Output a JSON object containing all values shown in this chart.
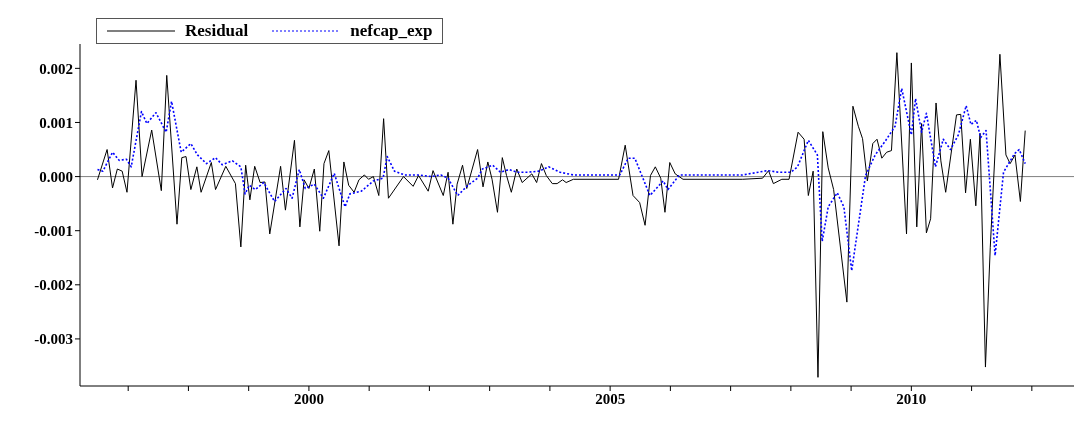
{
  "chart_data": {
    "type": "line",
    "xlim": [
      1996.2,
      2012.7
    ],
    "xticks": [
      {
        "value": 1997,
        "label": null
      },
      {
        "value": 1998,
        "label": null
      },
      {
        "value": 1999,
        "label": null
      },
      2000,
      {
        "value": 2001,
        "label": null
      },
      {
        "value": 2002,
        "label": null
      },
      {
        "value": 2003,
        "label": null
      },
      {
        "value": 2004,
        "label": null
      },
      2005,
      {
        "value": 2006,
        "label": null
      },
      {
        "value": 2007,
        "label": null
      },
      {
        "value": 2008,
        "label": null
      },
      {
        "value": 2009,
        "label": null
      },
      2010,
      {
        "value": 2011,
        "label": null
      },
      {
        "value": 2012,
        "label": null
      }
    ],
    "ylim": [
      -0.00387,
      0.00245
    ],
    "yticks": [
      {
        "value": -0.003,
        "label": "-0.003"
      },
      {
        "value": -0.002,
        "label": "-0.002"
      },
      {
        "value": -0.001,
        "label": "-0.001"
      },
      {
        "value": 0,
        "label": "0.000"
      },
      {
        "value": 0.001,
        "label": "0.001"
      },
      {
        "value": 0.002,
        "label": "0.002"
      }
    ],
    "grid": false,
    "legend": "top left",
    "marker": "none",
    "ref_lines": [
      {
        "axis": "y",
        "value": 0,
        "label": null,
        "color": "#808080"
      }
    ],
    "series": [
      {
        "name": "Residual",
        "color": "#000000",
        "line_style": "solid",
        "x": [
          1996.49,
          1996.65,
          1996.74,
          1996.82,
          1996.9,
          1996.98,
          1997.13,
          1997.23,
          1997.39,
          1997.55,
          1997.64,
          1997.81,
          1997.89,
          1997.96,
          1998.04,
          1998.14,
          1998.21,
          1998.38,
          1998.45,
          1998.62,
          1998.78,
          1998.87,
          1998.95,
          1999.02,
          1999.1,
          1999.19,
          1999.27,
          1999.35,
          1999.53,
          1999.61,
          1999.76,
          1999.85,
          1999.92,
          2000.0,
          2000.09,
          2000.18,
          2000.25,
          2000.33,
          2000.5,
          2000.58,
          2000.66,
          2000.75,
          2000.83,
          2000.92,
          2000.99,
          2001.07,
          2001.16,
          2001.24,
          2001.32,
          2001.57,
          2001.73,
          2001.82,
          2001.98,
          2002.06,
          2002.23,
          2002.31,
          2002.39,
          2002.46,
          2002.55,
          2002.62,
          2002.8,
          2002.89,
          2002.97,
          2003.04,
          2003.13,
          2003.21,
          2003.28,
          2003.36,
          2003.45,
          2003.54,
          2003.7,
          2003.78,
          2003.86,
          2003.94,
          2004.04,
          2004.12,
          2004.21,
          2004.27,
          2004.39,
          2004.5,
          2005.14,
          2005.25,
          2005.38,
          2005.49,
          2005.58,
          2005.67,
          2005.75,
          2005.84,
          2005.91,
          2005.99,
          2006.08,
          2006.21,
          2007.2,
          2007.53,
          2007.63,
          2007.71,
          2007.85,
          2007.97,
          2008.12,
          2008.22,
          2008.29,
          2008.37,
          2008.45,
          2008.53,
          2008.62,
          2008.71,
          2008.93,
          2009.03,
          2009.12,
          2009.19,
          2009.27,
          2009.36,
          2009.43,
          2009.51,
          2009.59,
          2009.67,
          2009.76,
          2009.92,
          2010.0,
          2010.09,
          2010.17,
          2010.25,
          2010.32,
          2010.41,
          2010.49,
          2010.57,
          2010.75,
          2010.82,
          2010.9,
          2010.98,
          2011.07,
          2011.14,
          2011.23,
          2011.31,
          2011.47,
          2011.57,
          2011.64,
          2011.72,
          2011.81,
          2011.89
        ],
        "values": [
          -6e-05,
          0.0005,
          -0.00021,
          0.00014,
          0.0001,
          -0.00029,
          0.00178,
          0,
          0.00086,
          -0.00026,
          0.00187,
          -0.00088,
          0.00035,
          0.00037,
          -0.00024,
          0.00018,
          -0.00029,
          0.00026,
          -0.00024,
          0.00019,
          -0.00013,
          -0.0013,
          0.00021,
          -0.00043,
          0.00019,
          -0.00011,
          -0.0001,
          -0.00106,
          0.00019,
          -0.00062,
          0.00067,
          -0.00093,
          -6e-05,
          -0.00022,
          0.00014,
          -0.00101,
          0.00024,
          0.00048,
          -0.00128,
          0.00027,
          -0.00016,
          -0.00029,
          -6e-05,
          3e-05,
          -5e-05,
          0,
          -0.00035,
          0.00107,
          -0.0004,
          0,
          -0.00018,
          2e-05,
          -0.00027,
          0.00011,
          -0.00035,
          8e-05,
          -0.00088,
          -0.00014,
          0.00021,
          -0.00022,
          0.0005,
          -0.00019,
          0.00027,
          -5e-05,
          -0.00066,
          0.00035,
          2e-05,
          -0.00029,
          0.00014,
          -0.00011,
          5e-05,
          -0.00011,
          0.00024,
          2e-05,
          -0.00013,
          -0.00013,
          -6e-05,
          -0.00011,
          -5e-05,
          -5e-05,
          -5e-05,
          0.00058,
          -0.00035,
          -0.00048,
          -0.0009,
          2e-05,
          0.00018,
          -3e-05,
          -0.00066,
          0.00026,
          5e-05,
          -5e-05,
          -5e-05,
          -3e-05,
          0.00011,
          -0.00013,
          -5e-05,
          -5e-05,
          0.00082,
          0.00069,
          -0.00035,
          0.0001,
          -0.00371,
          0.00083,
          0.00016,
          -0.00024,
          -0.00232,
          0.0013,
          0.00093,
          0.0007,
          -8e-05,
          0.00061,
          0.00069,
          0.00034,
          0.00045,
          0.00048,
          0.00229,
          -0.00106,
          0.0021,
          -0.00093,
          0.00098,
          -0.00104,
          -0.00078,
          0.00136,
          0.00029,
          -0.00029,
          0.00114,
          0.00115,
          -0.0003,
          0.00069,
          -0.00054,
          0.0008,
          -0.00352,
          -0.00131,
          0.00226,
          0.0004,
          0.00024,
          0.0004,
          -0.00046,
          0.00085
        ]
      },
      {
        "name": "nefcap_exp",
        "color": "#0000ff",
        "line_style": "dotted",
        "x": [
          1996.49,
          1996.58,
          1996.74,
          1996.85,
          1996.97,
          1997.05,
          1997.22,
          1997.31,
          1997.46,
          1997.63,
          1997.72,
          1997.88,
          1998.04,
          1998.15,
          1998.3,
          1998.45,
          1998.56,
          1998.73,
          1998.87,
          1998.94,
          1999.01,
          1999.11,
          1999.25,
          1999.43,
          1999.62,
          1999.72,
          1999.84,
          1999.94,
          2000.09,
          2000.24,
          2000.42,
          2000.6,
          2000.68,
          2000.87,
          2001.07,
          2001.23,
          2001.3,
          2001.42,
          2001.59,
          2001.81,
          2002.03,
          2002.19,
          2002.31,
          2002.47,
          2002.64,
          2002.8,
          2002.88,
          2003.05,
          2003.18,
          2003.32,
          2003.46,
          2003.63,
          2003.82,
          2003.98,
          2004.17,
          2004.39,
          2005.16,
          2005.3,
          2005.41,
          2005.66,
          2005.88,
          2005.96,
          2006.15,
          2007.2,
          2007.61,
          2007.8,
          2008.0,
          2008.11,
          2008.29,
          2008.44,
          2008.52,
          2008.62,
          2008.77,
          2008.88,
          2009.01,
          2009.24,
          2009.4,
          2009.57,
          2009.73,
          2009.84,
          2010.0,
          2010.07,
          2010.17,
          2010.25,
          2010.4,
          2010.53,
          2010.65,
          2010.78,
          2010.91,
          2010.99,
          2011.08,
          2011.15,
          2011.24,
          2011.39,
          2011.53,
          2011.71,
          2011.79,
          2011.89
        ],
        "values": [
          0.00013,
          0.0001,
          0.00045,
          0.0003,
          0.00032,
          0.00018,
          0.0012,
          0.00098,
          0.00118,
          0.00082,
          0.00139,
          0.00045,
          0.00061,
          0.0004,
          0.00024,
          0.00035,
          0.00022,
          0.00029,
          0.00018,
          -0.00032,
          -0.00016,
          -0.00024,
          -0.00011,
          -0.00046,
          -0.00022,
          -0.0004,
          0.00013,
          -0.00022,
          -0.00014,
          -0.0004,
          6e-05,
          -0.00056,
          -0.00032,
          -0.00027,
          -8e-05,
          -3e-05,
          0.00037,
          0.0001,
          3e-05,
          3e-05,
          0,
          3e-05,
          -3e-05,
          -0.00035,
          -0.00016,
          -3e-05,
          0.00014,
          0.00021,
          8e-05,
          0.00013,
          8e-05,
          8e-05,
          0.0001,
          0.00018,
          8e-05,
          3e-05,
          3e-05,
          0.00034,
          0.00034,
          -0.00035,
          -8e-05,
          -0.00024,
          3e-05,
          3e-05,
          0.00011,
          8e-05,
          8e-05,
          0.00018,
          0.00067,
          0.0004,
          -0.0012,
          -0.00056,
          -0.0003,
          -0.00056,
          -0.00174,
          2e-05,
          0.0004,
          0.00066,
          0.00093,
          0.00163,
          0.00077,
          0.00144,
          0.00082,
          0.00117,
          0.00018,
          0.00069,
          0.0005,
          0.00077,
          0.00131,
          0.00096,
          0.00104,
          0.00072,
          0.00085,
          -0.00146,
          8e-05,
          0.00042,
          0.0005,
          0.00024
        ]
      }
    ]
  }
}
